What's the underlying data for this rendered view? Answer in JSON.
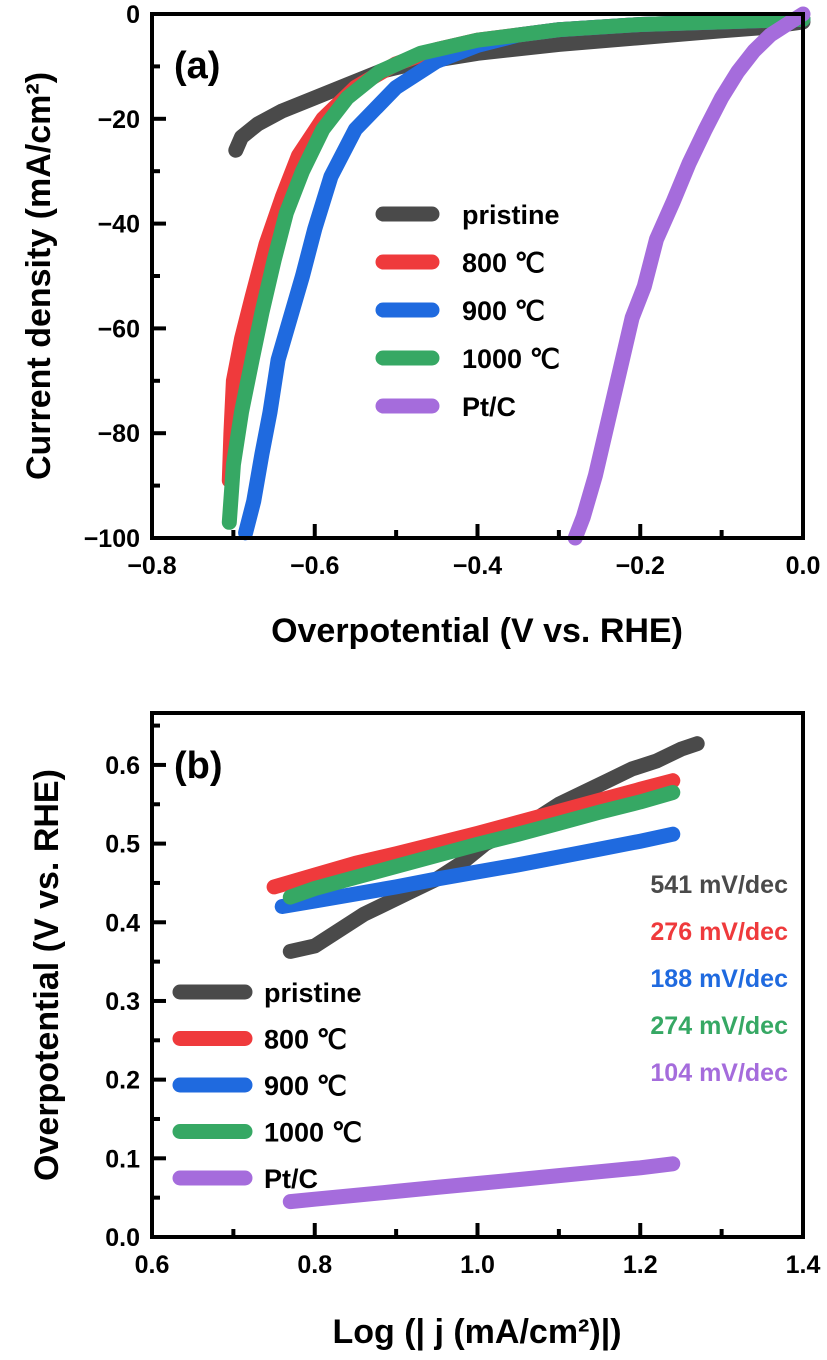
{
  "chart_data": [
    {
      "type": "line",
      "panel_label": "(a)",
      "title": "",
      "xlabel": "Overpotential (V vs. RHE)",
      "ylabel": "Current density (mA/cm²)",
      "xlim": [
        -0.8,
        0.0
      ],
      "ylim": [
        -100,
        0
      ],
      "xticks": [
        -0.8,
        -0.6,
        -0.4,
        -0.2,
        0.0
      ],
      "xtick_labels": [
        "−0.8",
        "−0.6",
        "−0.4",
        "−0.2",
        "0.0"
      ],
      "yticks": [
        0,
        -20,
        -40,
        -60,
        -80,
        -100
      ],
      "ytick_labels": [
        "0",
        "−20",
        "−40",
        "−60",
        "−80",
        "−100"
      ],
      "grid": false,
      "legend_position": "center",
      "series": [
        {
          "name": "pristine",
          "color": "#4a4a4a",
          "x": [
            -0.697,
            -0.69,
            -0.67,
            -0.64,
            -0.6,
            -0.56,
            -0.52,
            -0.48,
            -0.4,
            -0.3,
            -0.2,
            -0.1,
            -0.05,
            0.0
          ],
          "y": [
            -26,
            -23.5,
            -21,
            -18.5,
            -16,
            -13.5,
            -11,
            -9.5,
            -7.5,
            -5.8,
            -4.5,
            -3.2,
            -2.6,
            -1.5
          ]
        },
        {
          "name": "800 ℃",
          "color": "#ef3a3c",
          "x": [
            -0.705,
            -0.703,
            -0.7,
            -0.69,
            -0.677,
            -0.66,
            -0.64,
            -0.62,
            -0.59,
            -0.55,
            -0.5,
            -0.45,
            -0.4,
            -0.3,
            -0.2,
            -0.1,
            0.0
          ],
          "y": [
            -89,
            -80,
            -70,
            -62,
            -54,
            -44,
            -35,
            -27,
            -20,
            -14,
            -9.5,
            -6.8,
            -5,
            -3,
            -2,
            -1.5,
            -1
          ]
        },
        {
          "name": "900 ℃",
          "color": "#1f6adf",
          "x": [
            -0.685,
            -0.675,
            -0.665,
            -0.655,
            -0.645,
            -0.63,
            -0.615,
            -0.6,
            -0.58,
            -0.55,
            -0.5,
            -0.45,
            -0.4,
            -0.35,
            -0.3,
            -0.2,
            -0.1,
            0.0
          ],
          "y": [
            -99,
            -93,
            -84,
            -76,
            -66,
            -58,
            -50,
            -41,
            -31,
            -22,
            -14,
            -9,
            -6,
            -4,
            -3,
            -2,
            -1.5,
            -1
          ]
        },
        {
          "name": "1000 ℃",
          "color": "#36a864",
          "x": [
            -0.705,
            -0.7,
            -0.69,
            -0.677,
            -0.665,
            -0.65,
            -0.635,
            -0.615,
            -0.59,
            -0.56,
            -0.52,
            -0.47,
            -0.4,
            -0.3,
            -0.2,
            -0.1,
            0.0
          ],
          "y": [
            -97,
            -86,
            -76,
            -66,
            -57,
            -47,
            -38,
            -30,
            -22,
            -16,
            -11,
            -7.5,
            -5,
            -3,
            -2,
            -1.5,
            -1
          ]
        },
        {
          "name": "Pt/C",
          "color": "#a56cdc",
          "x": [
            -0.28,
            -0.27,
            -0.255,
            -0.24,
            -0.225,
            -0.21,
            -0.195,
            -0.18,
            -0.16,
            -0.14,
            -0.12,
            -0.1,
            -0.08,
            -0.06,
            -0.04,
            -0.02,
            -0.01,
            0.0
          ],
          "y": [
            -100,
            -96,
            -88,
            -78,
            -68,
            -58,
            -52,
            -43,
            -36,
            -28.5,
            -22,
            -16,
            -11,
            -7,
            -4,
            -2,
            -1,
            0
          ]
        }
      ]
    },
    {
      "type": "line",
      "panel_label": "(b)",
      "title": "",
      "xlabel": "Log (| j (mA/cm²)|)",
      "ylabel": "Overpotential (V vs. RHE)",
      "xlim": [
        0.6,
        1.4
      ],
      "ylim": [
        0.0,
        0.666
      ],
      "xticks": [
        0.6,
        0.8,
        1.0,
        1.2,
        1.4
      ],
      "xtick_labels": [
        "0.6",
        "0.8",
        "1.0",
        "1.2",
        "1.4"
      ],
      "yticks": [
        0.0,
        0.1,
        0.2,
        0.3,
        0.4,
        0.5,
        0.6
      ],
      "ytick_labels": [
        "0.0",
        "0.1",
        "0.2",
        "0.3",
        "0.4",
        "0.5",
        "0.6"
      ],
      "grid": false,
      "legend_position": "bottom-left",
      "series": [
        {
          "name": "pristine",
          "color": "#4a4a4a",
          "tafel_slope": "541 mV/dec",
          "x": [
            0.77,
            0.8,
            0.83,
            0.86,
            0.89,
            0.92,
            0.95,
            0.98,
            1.01,
            1.04,
            1.07,
            1.1,
            1.13,
            1.16,
            1.19,
            1.22,
            1.25,
            1.27
          ],
          "y": [
            0.363,
            0.37,
            0.39,
            0.41,
            0.425,
            0.44,
            0.455,
            0.475,
            0.5,
            0.515,
            0.53,
            0.55,
            0.565,
            0.58,
            0.595,
            0.605,
            0.62,
            0.627
          ]
        },
        {
          "name": "800 ℃",
          "color": "#ef3a3c",
          "tafel_slope": "276 mV/dec",
          "x": [
            0.75,
            0.8,
            0.85,
            0.9,
            0.95,
            1.0,
            1.05,
            1.1,
            1.15,
            1.2,
            1.24
          ],
          "y": [
            0.445,
            0.46,
            0.475,
            0.487,
            0.5,
            0.513,
            0.527,
            0.541,
            0.555,
            0.569,
            0.58
          ]
        },
        {
          "name": "900 ℃",
          "color": "#1f6adf",
          "tafel_slope": "188 mV/dec",
          "x": [
            0.76,
            0.8,
            0.85,
            0.9,
            0.95,
            1.0,
            1.05,
            1.1,
            1.15,
            1.2,
            1.24
          ],
          "y": [
            0.42,
            0.427,
            0.436,
            0.445,
            0.455,
            0.464,
            0.473,
            0.483,
            0.493,
            0.503,
            0.512
          ]
        },
        {
          "name": "1000 ℃",
          "color": "#36a864",
          "tafel_slope": "274 mV/dec",
          "x": [
            0.77,
            0.8,
            0.85,
            0.9,
            0.95,
            1.0,
            1.05,
            1.1,
            1.15,
            1.2,
            1.24
          ],
          "y": [
            0.432,
            0.443,
            0.457,
            0.471,
            0.485,
            0.499,
            0.512,
            0.526,
            0.54,
            0.553,
            0.565
          ]
        },
        {
          "name": "Pt/C",
          "color": "#a56cdc",
          "tafel_slope": "104 mV/dec",
          "x": [
            0.77,
            0.8,
            0.85,
            0.9,
            0.95,
            1.0,
            1.05,
            1.1,
            1.15,
            1.2,
            1.24
          ],
          "y": [
            0.045,
            0.048,
            0.053,
            0.058,
            0.063,
            0.068,
            0.073,
            0.078,
            0.083,
            0.088,
            0.093
          ]
        }
      ],
      "annotations": [
        "541 mV/dec",
        "276 mV/dec",
        "188 mV/dec",
        "274 mV/dec",
        "104 mV/dec"
      ]
    }
  ]
}
